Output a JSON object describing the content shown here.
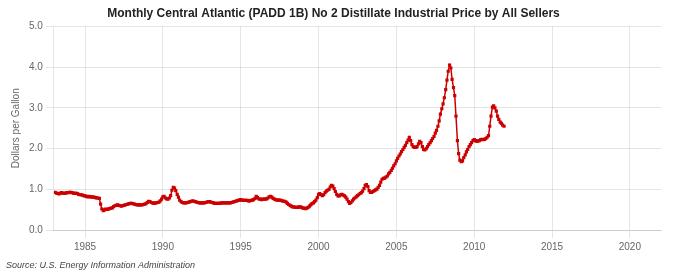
{
  "chart_data": {
    "type": "line",
    "title": "Monthly Central Atlantic (PADD 1B) No 2 Distillate Industrial Price by All Sellers",
    "ylabel": "Dollars per Gallon",
    "source": "Source: U.S. Energy Information Administration",
    "color": "#cc0000",
    "marker": "square",
    "line_style": "solid",
    "grid": true,
    "xlim": [
      1983,
      2022
    ],
    "xticks": [
      1985,
      1990,
      1995,
      2000,
      2005,
      2010,
      2015,
      2020
    ],
    "ylim": [
      0.0,
      5.0
    ],
    "yticks": [
      {
        "value": 0.0,
        "label": "0.0"
      },
      {
        "value": 1.0,
        "label": "1.0"
      },
      {
        "value": 2.0,
        "label": "2.0"
      },
      {
        "value": 3.0,
        "label": "3.0"
      },
      {
        "value": 4.0,
        "label": "4.0"
      },
      {
        "value": 5.0,
        "label": "5.0"
      }
    ],
    "x": [
      1983.08,
      1983.17,
      1983.25,
      1983.33,
      1983.42,
      1983.5,
      1983.58,
      1983.67,
      1983.75,
      1983.83,
      1983.92,
      1984.0,
      1984.08,
      1984.17,
      1984.25,
      1984.33,
      1984.42,
      1984.5,
      1984.58,
      1984.67,
      1984.75,
      1984.83,
      1984.92,
      1985.0,
      1985.08,
      1985.17,
      1985.25,
      1985.33,
      1985.42,
      1985.5,
      1985.58,
      1985.67,
      1985.75,
      1985.83,
      1985.92,
      1986.0,
      1986.08,
      1986.17,
      1986.25,
      1986.33,
      1986.42,
      1986.5,
      1986.58,
      1986.67,
      1986.75,
      1986.83,
      1986.92,
      1987.0,
      1987.08,
      1987.17,
      1987.25,
      1987.33,
      1987.42,
      1987.5,
      1987.58,
      1987.67,
      1987.75,
      1987.83,
      1987.92,
      1988.0,
      1988.08,
      1988.17,
      1988.25,
      1988.33,
      1988.42,
      1988.5,
      1988.58,
      1988.67,
      1988.75,
      1988.83,
      1988.92,
      1989.0,
      1989.08,
      1989.17,
      1989.25,
      1989.33,
      1989.42,
      1989.5,
      1989.58,
      1989.67,
      1989.75,
      1989.83,
      1989.92,
      1990.0,
      1990.08,
      1990.17,
      1990.25,
      1990.33,
      1990.42,
      1990.5,
      1990.58,
      1990.67,
      1990.75,
      1990.83,
      1990.92,
      1991.0,
      1991.08,
      1991.17,
      1991.25,
      1991.33,
      1991.42,
      1991.5,
      1991.58,
      1991.67,
      1991.75,
      1991.83,
      1991.92,
      1992.0,
      1992.08,
      1992.17,
      1992.25,
      1992.33,
      1992.42,
      1992.5,
      1992.58,
      1992.67,
      1992.75,
      1992.83,
      1992.92,
      1993.0,
      1993.08,
      1993.17,
      1993.25,
      1993.33,
      1993.42,
      1993.5,
      1993.58,
      1993.67,
      1993.75,
      1993.83,
      1993.92,
      1994.0,
      1994.08,
      1994.17,
      1994.25,
      1994.33,
      1994.42,
      1994.5,
      1994.58,
      1994.67,
      1994.75,
      1994.83,
      1994.92,
      1995.0,
      1995.08,
      1995.17,
      1995.25,
      1995.33,
      1995.42,
      1995.5,
      1995.58,
      1995.67,
      1995.75,
      1995.83,
      1995.92,
      1996.0,
      1996.08,
      1996.17,
      1996.25,
      1996.33,
      1996.42,
      1996.5,
      1996.58,
      1996.67,
      1996.75,
      1996.83,
      1996.92,
      1997.0,
      1997.08,
      1997.17,
      1997.25,
      1997.33,
      1997.42,
      1997.5,
      1997.58,
      1997.67,
      1997.75,
      1997.83,
      1997.92,
      1998.0,
      1998.08,
      1998.17,
      1998.25,
      1998.33,
      1998.42,
      1998.5,
      1998.58,
      1998.67,
      1998.75,
      1998.83,
      1998.92,
      1999.0,
      1999.08,
      1999.17,
      1999.25,
      1999.33,
      1999.42,
      1999.5,
      1999.58,
      1999.67,
      1999.75,
      1999.83,
      1999.92,
      2000.0,
      2000.08,
      2000.17,
      2000.25,
      2000.33,
      2000.42,
      2000.5,
      2000.58,
      2000.67,
      2000.75,
      2000.83,
      2000.92,
      2001.0,
      2001.08,
      2001.17,
      2001.25,
      2001.33,
      2001.42,
      2001.5,
      2001.58,
      2001.67,
      2001.75,
      2001.83,
      2001.92,
      2002.0,
      2002.08,
      2002.17,
      2002.25,
      2002.33,
      2002.42,
      2002.5,
      2002.58,
      2002.67,
      2002.75,
      2002.83,
      2002.92,
      2003.0,
      2003.08,
      2003.17,
      2003.25,
      2003.33,
      2003.42,
      2003.5,
      2003.58,
      2003.67,
      2003.75,
      2003.83,
      2003.92,
      2004.0,
      2004.08,
      2004.17,
      2004.25,
      2004.33,
      2004.42,
      2004.5,
      2004.58,
      2004.67,
      2004.75,
      2004.83,
      2004.92,
      2005.0,
      2005.08,
      2005.17,
      2005.25,
      2005.33,
      2005.42,
      2005.5,
      2005.58,
      2005.67,
      2005.75,
      2005.83,
      2005.92,
      2006.0,
      2006.08,
      2006.17,
      2006.25,
      2006.33,
      2006.42,
      2006.5,
      2006.58,
      2006.67,
      2006.75,
      2006.83,
      2006.92,
      2007.0,
      2007.08,
      2007.17,
      2007.25,
      2007.33,
      2007.42,
      2007.5,
      2007.58,
      2007.67,
      2007.75,
      2007.83,
      2007.92,
      2008.0,
      2008.08,
      2008.17,
      2008.25,
      2008.33,
      2008.42,
      2008.5,
      2008.58,
      2008.67,
      2008.75,
      2008.83,
      2008.92,
      2009.0,
      2009.08,
      2009.17,
      2009.25,
      2009.33,
      2009.42,
      2009.5,
      2009.58,
      2009.67,
      2009.75,
      2009.83,
      2009.92,
      2010.0,
      2010.08,
      2010.17,
      2010.25,
      2010.33,
      2010.42,
      2010.5,
      2010.58,
      2010.67,
      2010.75,
      2010.83,
      2010.92,
      2011.0,
      2011.08,
      2011.17,
      2011.25,
      2011.33,
      2011.42,
      2011.5,
      2011.58,
      2011.67,
      2011.75,
      2011.83,
      2011.92
    ],
    "values": [
      0.93,
      0.91,
      0.9,
      0.89,
      0.91,
      0.92,
      0.91,
      0.9,
      0.91,
      0.92,
      0.92,
      0.93,
      0.93,
      0.92,
      0.91,
      0.9,
      0.91,
      0.9,
      0.88,
      0.87,
      0.87,
      0.86,
      0.85,
      0.84,
      0.83,
      0.82,
      0.83,
      0.82,
      0.82,
      0.81,
      0.81,
      0.8,
      0.79,
      0.79,
      0.78,
      0.64,
      0.52,
      0.48,
      0.5,
      0.52,
      0.51,
      0.52,
      0.53,
      0.54,
      0.55,
      0.58,
      0.6,
      0.61,
      0.62,
      0.61,
      0.6,
      0.59,
      0.6,
      0.61,
      0.62,
      0.63,
      0.64,
      0.65,
      0.66,
      0.66,
      0.65,
      0.64,
      0.63,
      0.62,
      0.62,
      0.62,
      0.62,
      0.62,
      0.63,
      0.64,
      0.65,
      0.68,
      0.71,
      0.7,
      0.68,
      0.67,
      0.66,
      0.67,
      0.67,
      0.68,
      0.69,
      0.72,
      0.76,
      0.82,
      0.83,
      0.79,
      0.77,
      0.76,
      0.79,
      0.85,
      0.98,
      1.05,
      1.03,
      0.97,
      0.88,
      0.81,
      0.74,
      0.7,
      0.68,
      0.67,
      0.67,
      0.67,
      0.68,
      0.69,
      0.7,
      0.71,
      0.72,
      0.71,
      0.7,
      0.69,
      0.68,
      0.67,
      0.67,
      0.67,
      0.67,
      0.67,
      0.68,
      0.69,
      0.7,
      0.7,
      0.69,
      0.68,
      0.67,
      0.66,
      0.66,
      0.66,
      0.66,
      0.66,
      0.67,
      0.67,
      0.67,
      0.67,
      0.67,
      0.67,
      0.67,
      0.67,
      0.68,
      0.69,
      0.7,
      0.71,
      0.72,
      0.73,
      0.74,
      0.75,
      0.74,
      0.73,
      0.73,
      0.73,
      0.73,
      0.72,
      0.72,
      0.73,
      0.74,
      0.75,
      0.78,
      0.83,
      0.8,
      0.77,
      0.76,
      0.75,
      0.76,
      0.76,
      0.76,
      0.77,
      0.79,
      0.82,
      0.83,
      0.81,
      0.78,
      0.76,
      0.75,
      0.74,
      0.74,
      0.74,
      0.73,
      0.72,
      0.71,
      0.71,
      0.69,
      0.66,
      0.63,
      0.61,
      0.59,
      0.57,
      0.57,
      0.56,
      0.56,
      0.56,
      0.57,
      0.57,
      0.56,
      0.54,
      0.54,
      0.53,
      0.54,
      0.56,
      0.59,
      0.62,
      0.65,
      0.67,
      0.7,
      0.74,
      0.8,
      0.88,
      0.9,
      0.87,
      0.85,
      0.87,
      0.92,
      0.96,
      0.98,
      1.0,
      1.06,
      1.1,
      1.08,
      1.02,
      0.95,
      0.88,
      0.84,
      0.84,
      0.87,
      0.88,
      0.86,
      0.84,
      0.81,
      0.76,
      0.7,
      0.66,
      0.68,
      0.72,
      0.76,
      0.79,
      0.82,
      0.85,
      0.87,
      0.9,
      0.92,
      0.96,
      1.02,
      1.1,
      1.12,
      1.07,
      0.97,
      0.93,
      0.93,
      0.95,
      0.97,
      0.99,
      1.01,
      1.05,
      1.1,
      1.18,
      1.25,
      1.27,
      1.28,
      1.3,
      1.33,
      1.38,
      1.42,
      1.47,
      1.52,
      1.58,
      1.63,
      1.7,
      1.76,
      1.82,
      1.87,
      1.93,
      1.98,
      2.03,
      2.08,
      2.15,
      2.21,
      2.28,
      2.2,
      2.1,
      2.05,
      2.03,
      2.03,
      2.05,
      2.12,
      2.18,
      2.15,
      2.05,
      1.98,
      1.97,
      2.0,
      2.05,
      2.1,
      2.15,
      2.2,
      2.25,
      2.3,
      2.38,
      2.45,
      2.55,
      2.68,
      2.85,
      2.98,
      3.1,
      3.25,
      3.45,
      3.68,
      3.9,
      4.05,
      3.98,
      3.7,
      3.5,
      3.3,
      2.8,
      2.2,
      1.88,
      1.72,
      1.68,
      1.7,
      1.78,
      1.85,
      1.92,
      1.98,
      2.05,
      2.1,
      2.15,
      2.2,
      2.22,
      2.2,
      2.18,
      2.19,
      2.2,
      2.22,
      2.23,
      2.22,
      2.23,
      2.25,
      2.28,
      2.32,
      2.55,
      2.8,
      3.02,
      3.05,
      3.0,
      2.92,
      2.8,
      2.72,
      2.65,
      2.62,
      2.58,
      2.55
    ]
  }
}
